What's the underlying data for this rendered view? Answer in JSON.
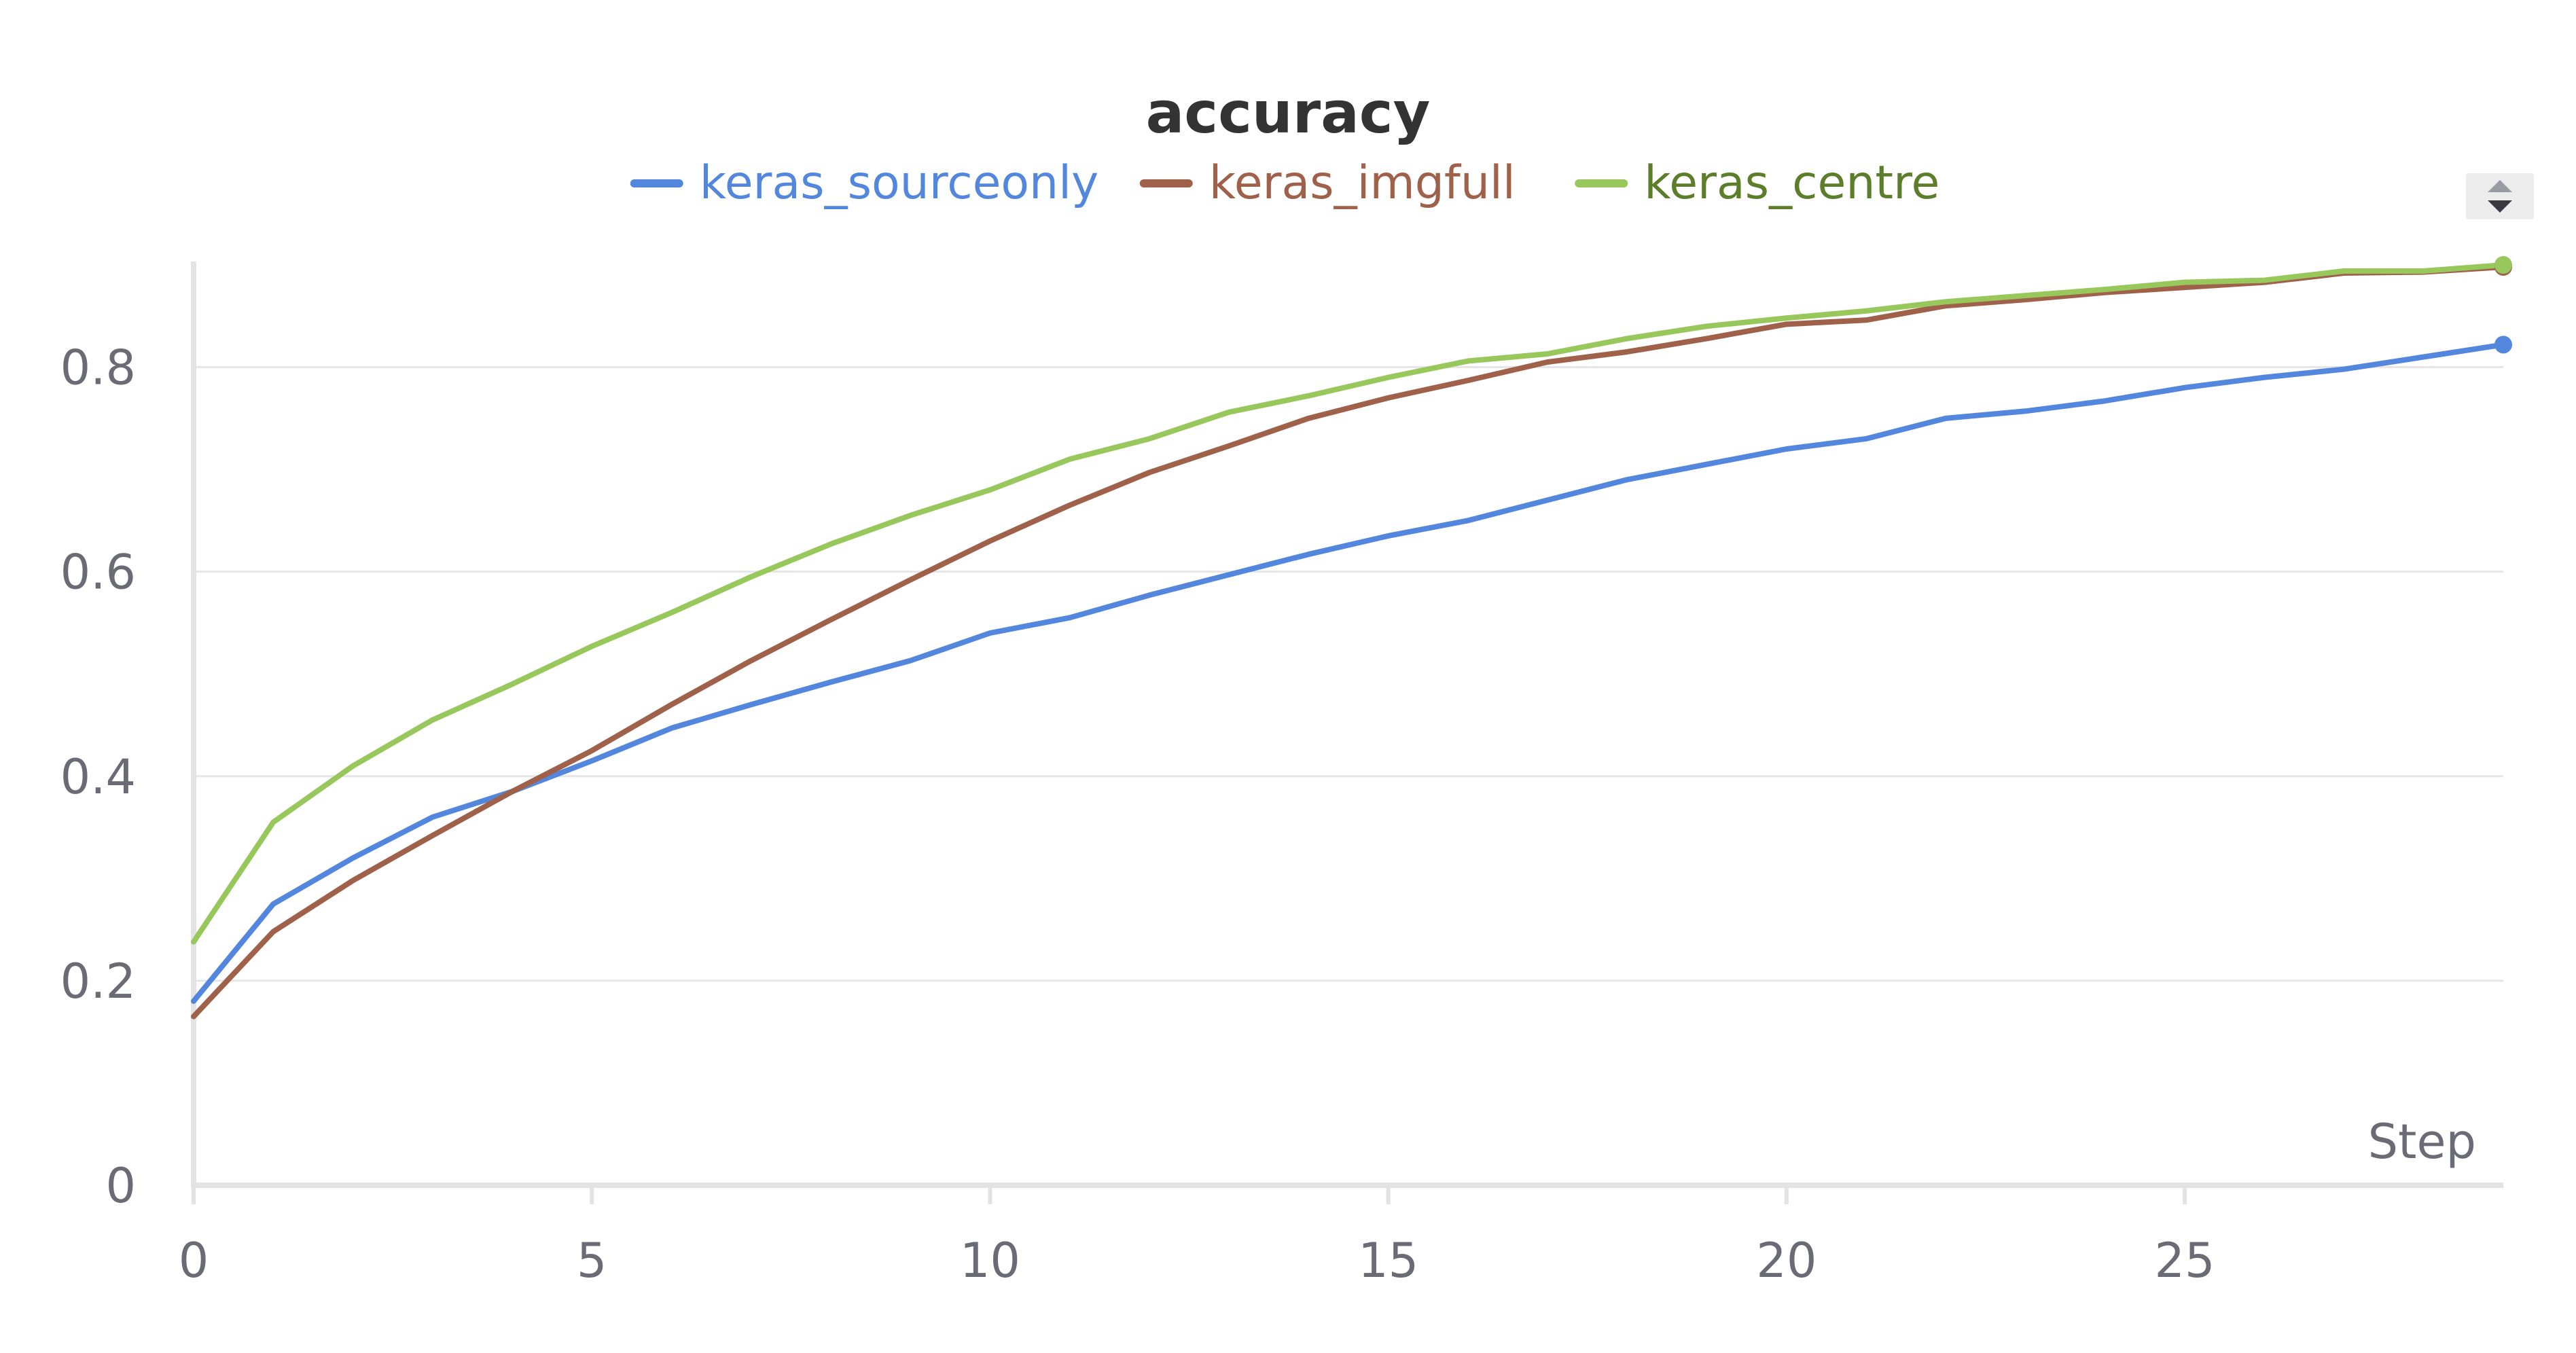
{
  "chart_data": {
    "type": "line",
    "title": "accuracy",
    "xlabel": "Step",
    "ylabel": "",
    "xlim": [
      0,
      29
    ],
    "ylim": [
      0,
      0.9
    ],
    "x_ticks": [
      0,
      5,
      10,
      15,
      20,
      25
    ],
    "y_ticks": [
      0,
      0.2,
      0.4,
      0.6,
      0.8
    ],
    "x_tick_labels": [
      "0",
      "5",
      "10",
      "15",
      "20",
      "25"
    ],
    "y_tick_labels": [
      "0",
      "0.2",
      "0.4",
      "0.6",
      "0.8"
    ],
    "grid": true,
    "legend_position": "top-center",
    "x": [
      0,
      1,
      2,
      3,
      4,
      5,
      6,
      7,
      8,
      9,
      10,
      11,
      12,
      13,
      14,
      15,
      16,
      17,
      18,
      19,
      20,
      21,
      22,
      23,
      24,
      25,
      26,
      27,
      28,
      29
    ],
    "series": [
      {
        "name": "keras_sourceonly",
        "color": "#5387dd",
        "label_color": "#5387dd",
        "values": [
          0.18,
          0.275,
          0.32,
          0.36,
          0.385,
          0.415,
          0.447,
          0.47,
          0.492,
          0.513,
          0.54,
          0.555,
          0.577,
          0.597,
          0.617,
          0.635,
          0.65,
          0.67,
          0.69,
          0.705,
          0.72,
          0.73,
          0.75,
          0.757,
          0.767,
          0.78,
          0.79,
          0.798,
          0.81,
          0.822
        ]
      },
      {
        "name": "keras_imgfull",
        "color": "#a0614a",
        "label_color": "#a0614a",
        "values": [
          0.165,
          0.248,
          0.298,
          0.342,
          0.385,
          0.425,
          0.47,
          0.513,
          0.553,
          0.592,
          0.63,
          0.665,
          0.697,
          0.723,
          0.75,
          0.77,
          0.787,
          0.805,
          0.815,
          0.828,
          0.842,
          0.846,
          0.86,
          0.866,
          0.873,
          0.878,
          0.883,
          0.892,
          0.893,
          0.898
        ]
      },
      {
        "name": "keras_centre",
        "color": "#98c85c",
        "label_color": "#5c7d2a",
        "values": [
          0.238,
          0.355,
          0.41,
          0.455,
          0.49,
          0.527,
          0.56,
          0.595,
          0.627,
          0.655,
          0.68,
          0.71,
          0.73,
          0.756,
          0.772,
          0.79,
          0.806,
          0.813,
          0.828,
          0.84,
          0.848,
          0.855,
          0.864,
          0.87,
          0.876,
          0.883,
          0.885,
          0.894,
          0.894,
          0.9
        ]
      }
    ]
  },
  "controls": {
    "sort_icon": "sort-up-down-icon"
  }
}
